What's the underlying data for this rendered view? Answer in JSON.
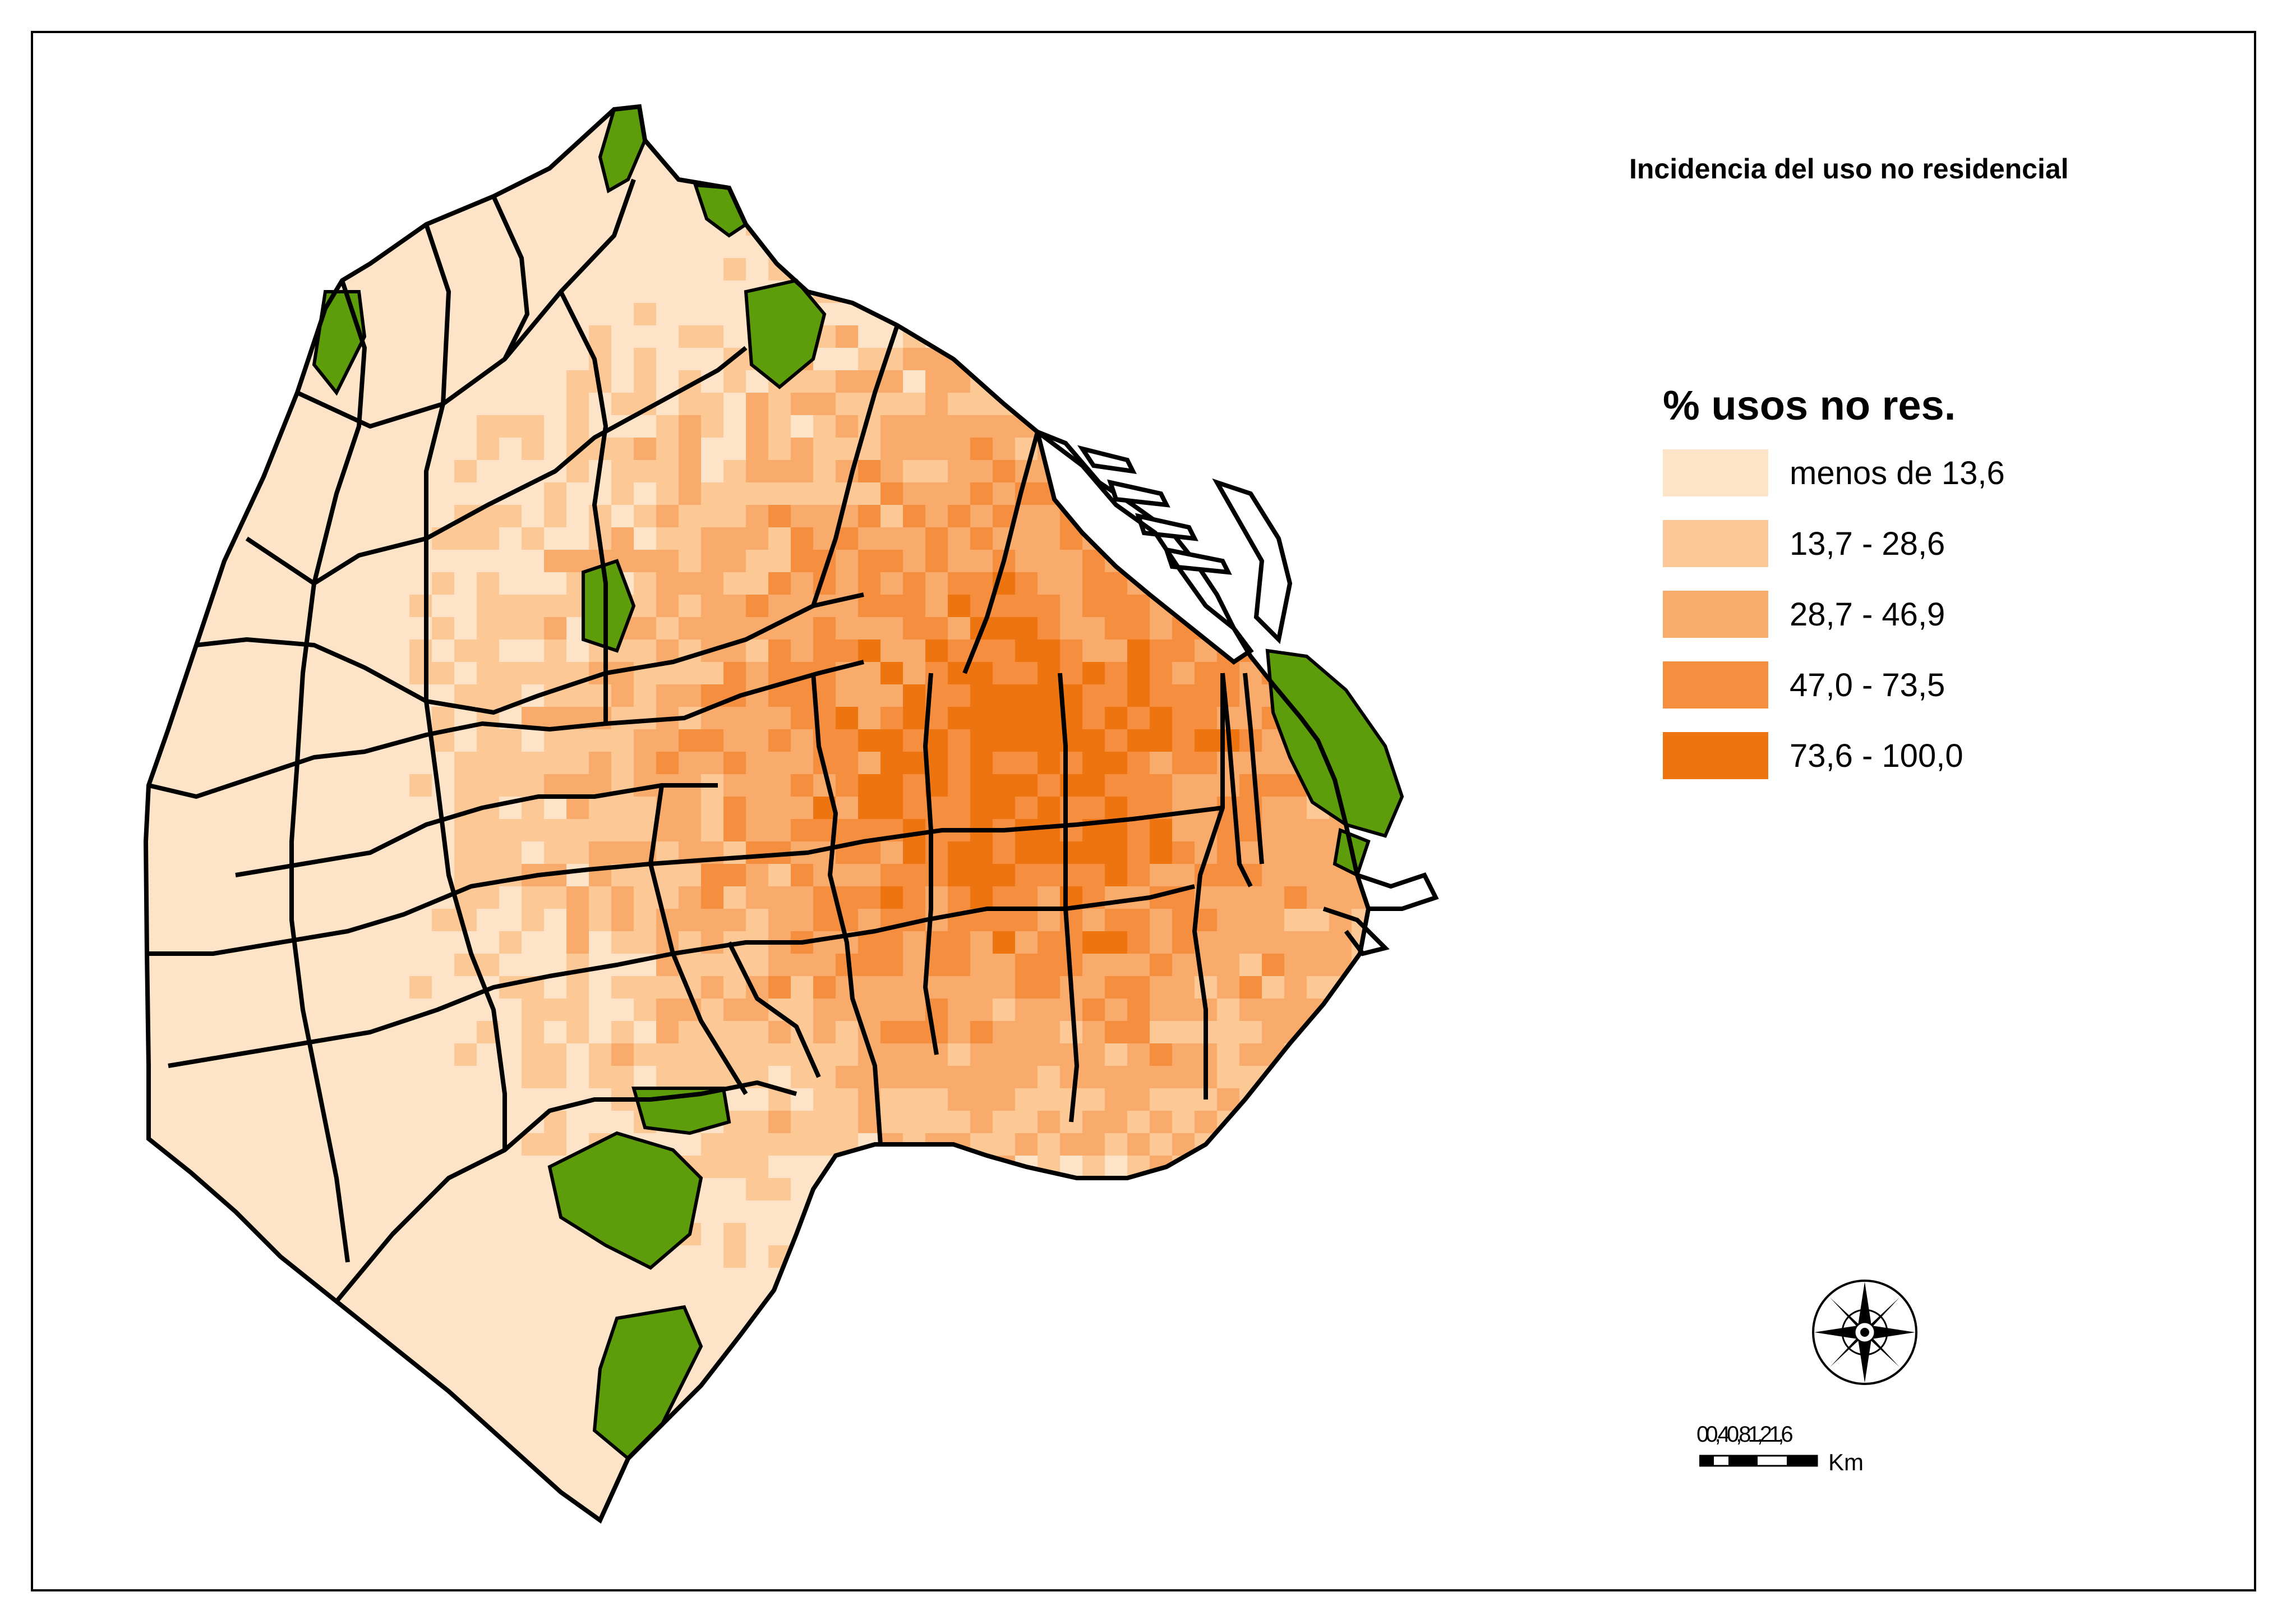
{
  "map": {
    "title": "Incidencia del uso no residencial",
    "colors": {
      "park": "#5d9c0a",
      "boundary": "#000000",
      "background": "#ffffff"
    },
    "legend": {
      "title": "% usos no res.",
      "classes": [
        {
          "label": "menos de 13,6",
          "color": "#fde4c8"
        },
        {
          "label": "13,7 - 28,6",
          "color": "#fcc896"
        },
        {
          "label": "28,7 - 46,9",
          "color": "#f9ab6c"
        },
        {
          "label": "47,0 - 73,5",
          "color": "#f68e3f"
        },
        {
          "label": "73,6 - 100,0",
          "color": "#ee7410"
        }
      ]
    },
    "scale": {
      "ticks": [
        "0",
        "0,4",
        "0,8",
        "1,2",
        "1,6"
      ],
      "overprinted": "00,40,81,21,6",
      "unit": "Km"
    },
    "compass_icon": "compass-rose-icon"
  }
}
